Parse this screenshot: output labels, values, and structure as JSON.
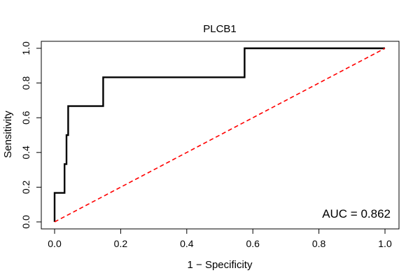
{
  "chart_data": {
    "type": "line",
    "title": "PLCB1",
    "xlabel": "1 − Specificity",
    "ylabel": "Sensitivity",
    "xlim": [
      0,
      1
    ],
    "ylim": [
      0,
      1
    ],
    "xticks": [
      0,
      0.2,
      0.4,
      0.6,
      0.8,
      1
    ],
    "xtick_labels": [
      "0.0",
      "0.2",
      "0.4",
      "0.6",
      "0.8",
      "1.0"
    ],
    "yticks": [
      0,
      0.2,
      0.4,
      0.6,
      0.8,
      1
    ],
    "ytick_labels": [
      "0.0",
      "0.2",
      "0.4",
      "0.6",
      "0.8",
      "1.0"
    ],
    "grid": false,
    "annotation": "AUC = 0.862",
    "series": [
      {
        "color": "#000000",
        "style": "solid",
        "x": [
          0,
          0,
          0.03,
          0.03,
          0.036,
          0.036,
          0.041,
          0.041,
          0.147,
          0.147,
          0.575,
          0.575,
          1.0
        ],
        "y": [
          0,
          0.167,
          0.167,
          0.333,
          0.333,
          0.5,
          0.5,
          0.667,
          0.667,
          0.833,
          0.833,
          1.0,
          1.0
        ]
      },
      {
        "color": "#ff0000",
        "style": "dashed",
        "x": [
          0,
          1
        ],
        "y": [
          0,
          1
        ]
      }
    ]
  }
}
